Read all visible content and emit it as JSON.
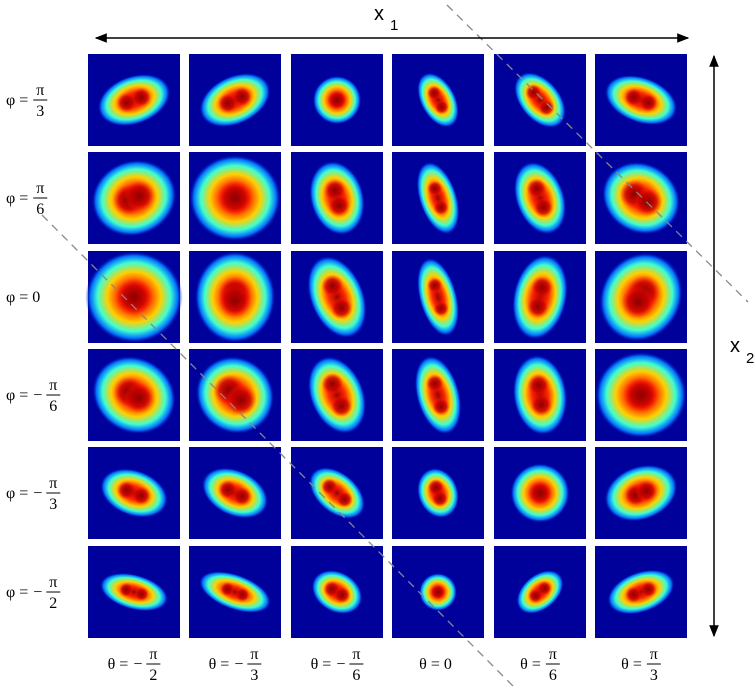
{
  "axes": {
    "x1": {
      "symbol": "x",
      "subscript": "1"
    },
    "x2": {
      "symbol": "x",
      "subscript": "2"
    }
  },
  "rows": [
    {
      "lhs": "φ =",
      "numerator": "π",
      "denominator": "3"
    },
    {
      "lhs": "φ =",
      "numerator": "π",
      "denominator": "6"
    },
    {
      "lhs": "φ = 0"
    },
    {
      "lhs": "φ =",
      "sign": "−",
      "numerator": "π",
      "denominator": "6"
    },
    {
      "lhs": "φ =",
      "sign": "−",
      "numerator": "π",
      "denominator": "3"
    },
    {
      "lhs": "φ =",
      "sign": "−",
      "numerator": "π",
      "denominator": "2"
    }
  ],
  "columns": [
    {
      "lhs": "θ =",
      "sign": "−",
      "numerator": "π",
      "denominator": "2"
    },
    {
      "lhs": "θ =",
      "sign": "−",
      "numerator": "π",
      "denominator": "3"
    },
    {
      "lhs": "θ =",
      "sign": "−",
      "numerator": "π",
      "denominator": "6"
    },
    {
      "lhs": "θ = 0"
    },
    {
      "lhs": "θ =",
      "numerator": "π",
      "denominator": "6"
    },
    {
      "lhs": "θ =",
      "numerator": "π",
      "denominator": "3"
    }
  ]
}
